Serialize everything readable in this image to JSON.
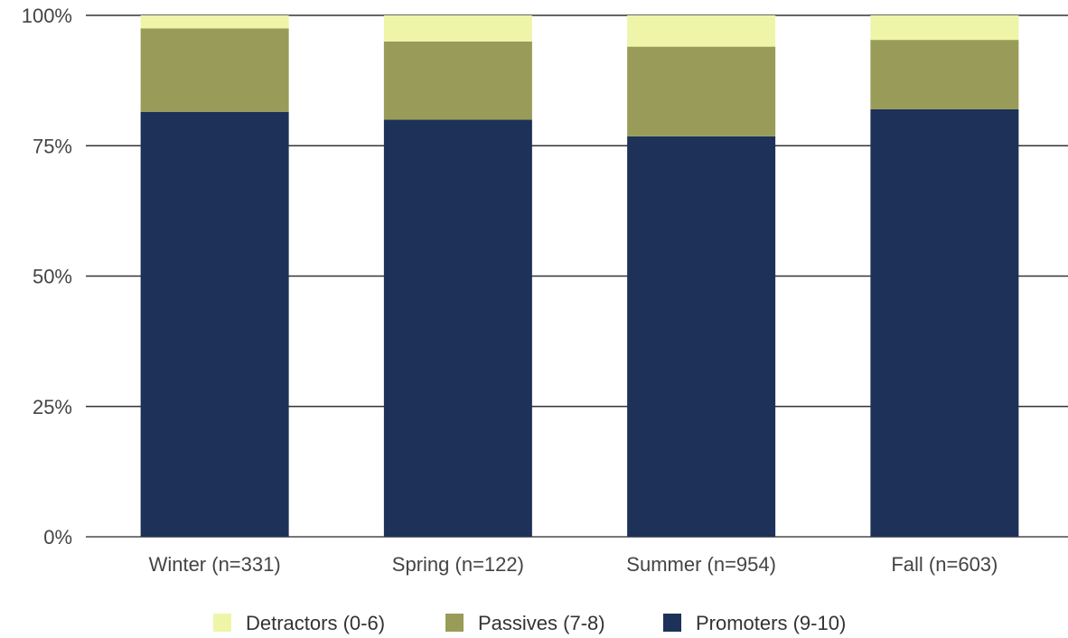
{
  "chart_data": {
    "type": "bar",
    "stacked": true,
    "normalized": true,
    "categories": [
      "Winter (n=331)",
      "Spring (n=122)",
      "Summer (n=954)",
      "Fall (n=603)"
    ],
    "series": [
      {
        "name": "Promoters (9-10)",
        "color": "#1e3158",
        "values": [
          81.5,
          80.0,
          76.8,
          82.0
        ]
      },
      {
        "name": "Passives (7-8)",
        "color": "#999c58",
        "values": [
          16.0,
          15.0,
          17.2,
          13.3
        ]
      },
      {
        "name": "Detractors (0-6)",
        "color": "#eef5a8",
        "values": [
          2.5,
          5.0,
          6.0,
          4.7
        ]
      }
    ],
    "legend_order": [
      "Detractors (0-6)",
      "Passives (7-8)",
      "Promoters (9-10)"
    ],
    "y_ticks": [
      "0%",
      "25%",
      "50%",
      "75%",
      "100%"
    ],
    "ylim": [
      0,
      100
    ],
    "grid": true,
    "legend_position": "bottom",
    "title": "",
    "xlabel": "",
    "ylabel": ""
  }
}
